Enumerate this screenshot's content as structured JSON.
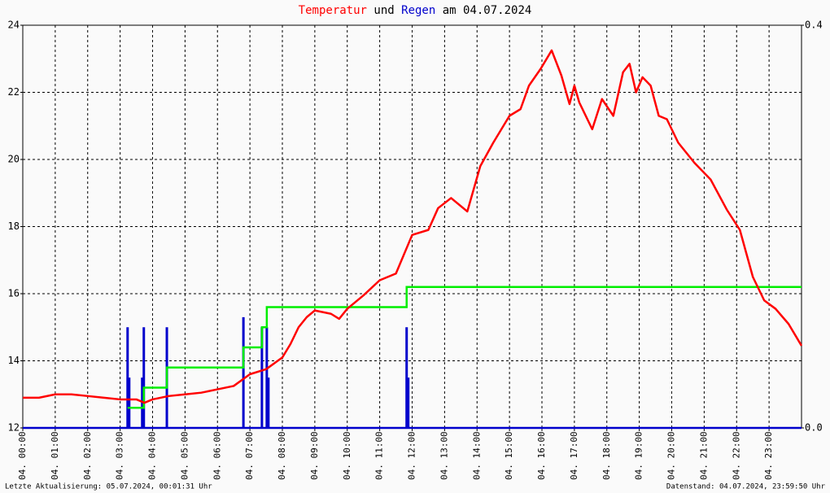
{
  "chart_data": {
    "type": "line",
    "title": [
      "Temperatur",
      "und",
      "Regen",
      "am 04.07.2024"
    ],
    "title_colors": [
      "#ff0000",
      "#000000",
      "#0000cc",
      "#000000"
    ],
    "footer_left": "Letzte Aktualisierung: 05.07.2024, 00:01:31 Uhr",
    "footer_right": "Datenstand: 04.07.2024, 23:59:50 Uhr",
    "xlim": [
      0,
      24
    ],
    "xticks": [
      {
        "value": 0,
        "label": "04. 00:00"
      },
      {
        "value": 1,
        "label": "04. 01:00"
      },
      {
        "value": 2,
        "label": "04. 02:00"
      },
      {
        "value": 3,
        "label": "04. 03:00"
      },
      {
        "value": 4,
        "label": "04. 04:00"
      },
      {
        "value": 5,
        "label": "04. 05:00"
      },
      {
        "value": 6,
        "label": "04. 06:00"
      },
      {
        "value": 7,
        "label": "04. 07:00"
      },
      {
        "value": 8,
        "label": "04. 08:00"
      },
      {
        "value": 9,
        "label": "04. 09:00"
      },
      {
        "value": 10,
        "label": "04. 10:00"
      },
      {
        "value": 11,
        "label": "04. 11:00"
      },
      {
        "value": 12,
        "label": "04. 12:00"
      },
      {
        "value": 13,
        "label": "04. 13:00"
      },
      {
        "value": 14,
        "label": "04. 14:00"
      },
      {
        "value": 15,
        "label": "04. 15:00"
      },
      {
        "value": 16,
        "label": "04. 16:00"
      },
      {
        "value": 17,
        "label": "04. 17:00"
      },
      {
        "value": 18,
        "label": "04. 18:00"
      },
      {
        "value": 19,
        "label": "04. 19:00"
      },
      {
        "value": 20,
        "label": "04. 20:00"
      },
      {
        "value": 21,
        "label": "04. 21:00"
      },
      {
        "value": 22,
        "label": "04. 22:00"
      },
      {
        "value": 23,
        "label": "04. 23:00"
      }
    ],
    "ylim": [
      12,
      24
    ],
    "yticks": [
      12,
      14,
      16,
      18,
      20,
      22,
      24
    ],
    "y2lim": [
      0,
      0.4
    ],
    "y2ticks": [
      {
        "value": 0,
        "label": "0.0"
      },
      0.4
    ],
    "grid": true,
    "series": [
      {
        "kind": "bar",
        "axis": "y2",
        "color": "#0000cc",
        "x": [
          3.23,
          3.28,
          3.73,
          3.68,
          4.44,
          6.8,
          7.37,
          7.52,
          7.57,
          11.83,
          11.88
        ],
        "values": [
          0.1,
          0.05,
          0.1,
          0.05,
          0.1,
          0.11,
          0.1,
          0.1,
          0.05,
          0.1,
          0.05
        ]
      },
      {
        "kind": "step",
        "axis": "y2",
        "color": "#00ee00",
        "x": [
          3.23,
          3.73,
          4.44,
          6.8,
          7.37,
          7.52,
          11.83,
          24
        ],
        "values": [
          0.02,
          0.04,
          0.06,
          0.08,
          0.1,
          0.12,
          0.14,
          0.14
        ]
      },
      {
        "kind": "line",
        "color": "#ff0000",
        "x": [
          0,
          0.5,
          1,
          1.5,
          2,
          2.5,
          3,
          3.5,
          3.75,
          4,
          4.5,
          5,
          5.5,
          6,
          6.5,
          7,
          7.5,
          8,
          8.25,
          8.5,
          8.75,
          9,
          9.5,
          9.75,
          10,
          10.5,
          11,
          11.5,
          12,
          12.5,
          12.8,
          13.2,
          13.7,
          14.1,
          14.5,
          15,
          15.34,
          15.6,
          15.96,
          16.3,
          16.6,
          16.85,
          17,
          17.15,
          17.55,
          17.85,
          18.2,
          18.5,
          18.7,
          18.9,
          19.1,
          19.35,
          19.6,
          19.85,
          20.2,
          20.7,
          21.2,
          21.7,
          22.1,
          22.5,
          22.85,
          23.2,
          23.6,
          24
        ],
        "values": [
          12.9,
          12.9,
          13.0,
          13.0,
          12.95,
          12.9,
          12.85,
          12.85,
          12.75,
          12.85,
          12.95,
          13.0,
          13.05,
          13.15,
          13.25,
          13.6,
          13.75,
          14.1,
          14.5,
          15.0,
          15.3,
          15.5,
          15.4,
          15.25,
          15.55,
          15.95,
          16.4,
          16.6,
          17.75,
          17.9,
          18.55,
          18.85,
          18.45,
          19.8,
          20.5,
          21.3,
          21.5,
          22.2,
          22.7,
          23.25,
          22.5,
          21.65,
          22.2,
          21.7,
          20.9,
          21.8,
          21.3,
          22.6,
          22.85,
          22.0,
          22.45,
          22.2,
          21.3,
          21.2,
          20.5,
          19.9,
          19.4,
          18.5,
          17.9,
          16.5,
          15.8,
          15.55,
          15.1,
          14.45
        ]
      }
    ]
  }
}
